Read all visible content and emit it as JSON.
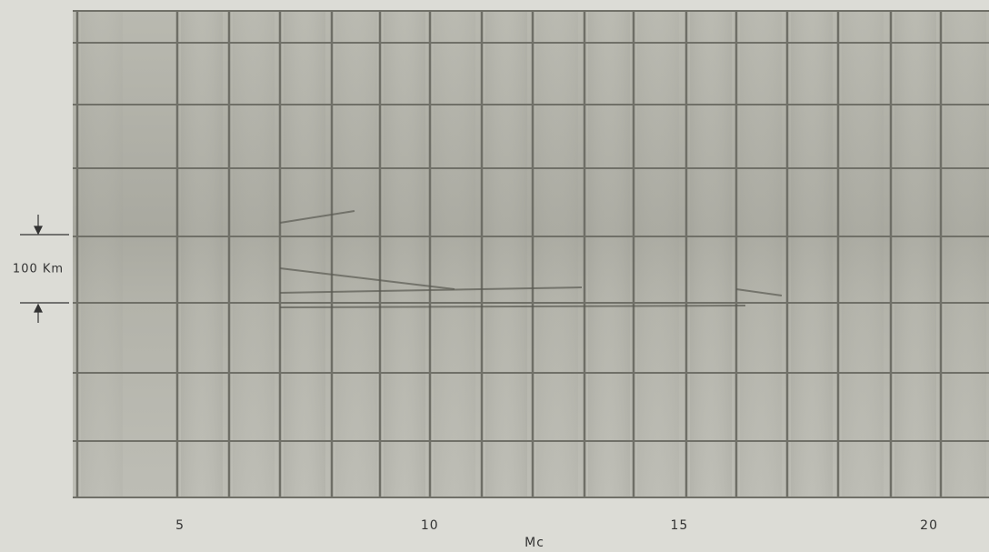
{
  "chart_data": {
    "type": "ionogram",
    "xlabel": "Mc",
    "xlim": [
      2.85,
      21.2
    ],
    "xticks": [
      5,
      10,
      15,
      20
    ],
    "annotation": "100 Km"
  }
}
